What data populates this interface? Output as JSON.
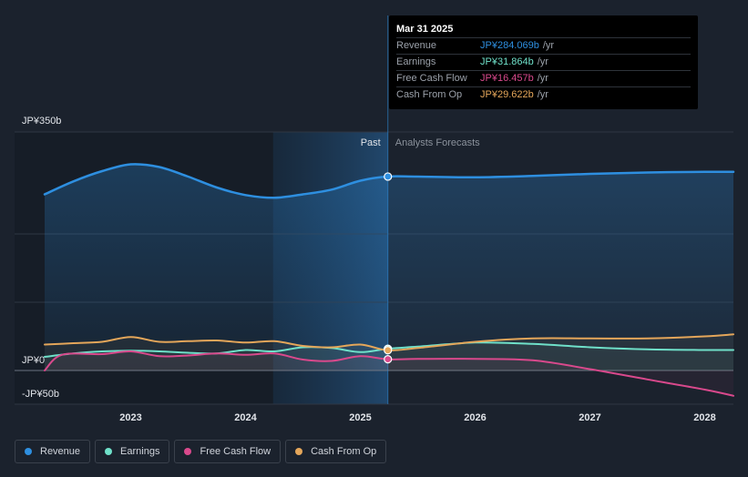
{
  "chart_data": {
    "type": "line",
    "y_unit_labels": {
      "top": "JP¥350b",
      "zero": "JP¥0",
      "bottom": "-JP¥50b"
    },
    "ylim": [
      -50,
      350
    ],
    "x_tick_labels": [
      "2023",
      "2024",
      "2025",
      "2026",
      "2027",
      "2028"
    ],
    "x_ticks": [
      2023,
      2024,
      2025,
      2026,
      2027,
      2028
    ],
    "xlim": [
      2022.25,
      2028.25
    ],
    "divider_x": 2025.24,
    "forecast_band_start": 2024.24,
    "past_label": "Past",
    "forecast_label": "Analysts Forecasts",
    "grid": true,
    "series": [
      {
        "name": "Revenue",
        "color": "#2e8fe0",
        "fill": true,
        "points": [
          [
            2022.25,
            258
          ],
          [
            2022.5,
            277
          ],
          [
            2022.75,
            292
          ],
          [
            2023.0,
            302
          ],
          [
            2023.25,
            298
          ],
          [
            2023.5,
            284
          ],
          [
            2023.75,
            268
          ],
          [
            2024.0,
            257
          ],
          [
            2024.25,
            253
          ],
          [
            2024.5,
            258
          ],
          [
            2024.75,
            265
          ],
          [
            2025.0,
            278
          ],
          [
            2025.24,
            284.069
          ],
          [
            2025.5,
            284
          ],
          [
            2026.0,
            283
          ],
          [
            2026.5,
            285
          ],
          [
            2027.0,
            288
          ],
          [
            2027.5,
            290
          ],
          [
            2028.0,
            291
          ],
          [
            2028.25,
            291
          ]
        ]
      },
      {
        "name": "Earnings",
        "color": "#6fe0c9",
        "points": [
          [
            2022.25,
            20
          ],
          [
            2022.5,
            25
          ],
          [
            2022.75,
            28
          ],
          [
            2023.0,
            29
          ],
          [
            2023.25,
            28
          ],
          [
            2023.5,
            26
          ],
          [
            2023.75,
            25
          ],
          [
            2024.0,
            30
          ],
          [
            2024.25,
            28
          ],
          [
            2024.5,
            34
          ],
          [
            2024.75,
            33
          ],
          [
            2025.0,
            27
          ],
          [
            2025.24,
            31.864
          ],
          [
            2025.5,
            35
          ],
          [
            2026.0,
            41
          ],
          [
            2026.5,
            39
          ],
          [
            2027.0,
            34
          ],
          [
            2027.5,
            31
          ],
          [
            2028.0,
            30
          ],
          [
            2028.25,
            30
          ]
        ]
      },
      {
        "name": "Free Cash Flow",
        "color": "#d9498c",
        "points": [
          [
            2022.25,
            0
          ],
          [
            2022.4,
            23
          ],
          [
            2022.75,
            24
          ],
          [
            2023.0,
            28
          ],
          [
            2023.25,
            21
          ],
          [
            2023.5,
            22
          ],
          [
            2023.75,
            25
          ],
          [
            2024.0,
            23
          ],
          [
            2024.25,
            25
          ],
          [
            2024.5,
            16
          ],
          [
            2024.75,
            14
          ],
          [
            2025.0,
            21
          ],
          [
            2025.24,
            16.457
          ],
          [
            2025.5,
            17
          ],
          [
            2026.0,
            17
          ],
          [
            2026.5,
            15
          ],
          [
            2027.0,
            2
          ],
          [
            2027.5,
            -13
          ],
          [
            2028.0,
            -28
          ],
          [
            2028.25,
            -37
          ]
        ]
      },
      {
        "name": "Cash From Op",
        "color": "#e4a65a",
        "points": [
          [
            2022.25,
            38
          ],
          [
            2022.5,
            40
          ],
          [
            2022.75,
            42
          ],
          [
            2023.0,
            49
          ],
          [
            2023.25,
            42
          ],
          [
            2023.5,
            43
          ],
          [
            2023.75,
            44
          ],
          [
            2024.0,
            41
          ],
          [
            2024.25,
            43
          ],
          [
            2024.5,
            36
          ],
          [
            2024.75,
            34
          ],
          [
            2025.0,
            38
          ],
          [
            2025.24,
            29.622
          ],
          [
            2025.5,
            33
          ],
          [
            2026.0,
            42
          ],
          [
            2026.5,
            47
          ],
          [
            2027.0,
            47
          ],
          [
            2027.5,
            47
          ],
          [
            2028.0,
            50
          ],
          [
            2028.25,
            53
          ]
        ]
      }
    ]
  },
  "tooltip": {
    "date": "Mar 31 2025",
    "rows": [
      {
        "label": "Revenue",
        "value": "JP¥284.069b",
        "unit": "/yr",
        "color": "#2e8fe0"
      },
      {
        "label": "Earnings",
        "value": "JP¥31.864b",
        "unit": "/yr",
        "color": "#6fe0c9"
      },
      {
        "label": "Free Cash Flow",
        "value": "JP¥16.457b",
        "unit": "/yr",
        "color": "#d9498c"
      },
      {
        "label": "Cash From Op",
        "value": "JP¥29.622b",
        "unit": "/yr",
        "color": "#e4a65a"
      }
    ]
  },
  "legend": [
    {
      "label": "Revenue",
      "color": "#2e8fe0"
    },
    {
      "label": "Earnings",
      "color": "#6fe0c9"
    },
    {
      "label": "Free Cash Flow",
      "color": "#d9498c"
    },
    {
      "label": "Cash From Op",
      "color": "#e4a65a"
    }
  ]
}
